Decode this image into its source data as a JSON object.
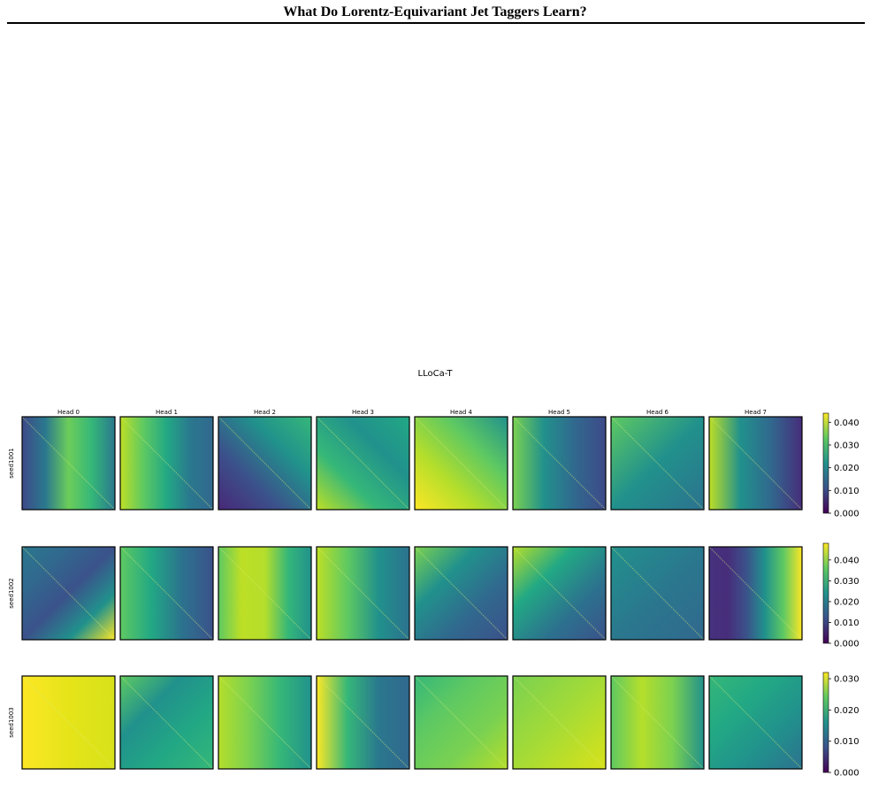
{
  "header": {
    "title": "What Do Lorentz-Equivariant Jet Taggers Learn?"
  },
  "figure": {
    "title": "LLoCa-T",
    "columns": [
      "Head 0",
      "Head 1",
      "Head 2",
      "Head 3",
      "Head 4",
      "Head 5",
      "Head 6",
      "Head 7"
    ],
    "rows": [
      {
        "label": "seed1001",
        "colorbar": {
          "lim": [
            0,
            0.044
          ],
          "ticks": [
            {
              "value": 0,
              "label": "0.000"
            },
            {
              "value": 0.01,
              "label": "0.010"
            },
            {
              "value": 0.02,
              "label": "0.020"
            },
            {
              "value": 0.03,
              "label": "0.030"
            },
            {
              "value": 0.04,
              "label": "0.040"
            }
          ]
        }
      },
      {
        "label": "seed1002",
        "colorbar": {
          "lim": [
            0,
            0.048
          ],
          "ticks": [
            {
              "value": 0,
              "label": "0.000"
            },
            {
              "value": 0.01,
              "label": "0.010"
            },
            {
              "value": 0.02,
              "label": "0.020"
            },
            {
              "value": 0.03,
              "label": "0.030"
            },
            {
              "value": 0.04,
              "label": "0.040"
            }
          ]
        }
      },
      {
        "label": "seed1003",
        "colorbar": {
          "lim": [
            0,
            0.032
          ],
          "ticks": [
            {
              "value": 0,
              "label": "0.000"
            },
            {
              "value": 0.01,
              "label": "0.010"
            },
            {
              "value": 0.02,
              "label": "0.020"
            },
            {
              "value": 0.03,
              "label": "0.030"
            }
          ]
        }
      }
    ]
  }
}
